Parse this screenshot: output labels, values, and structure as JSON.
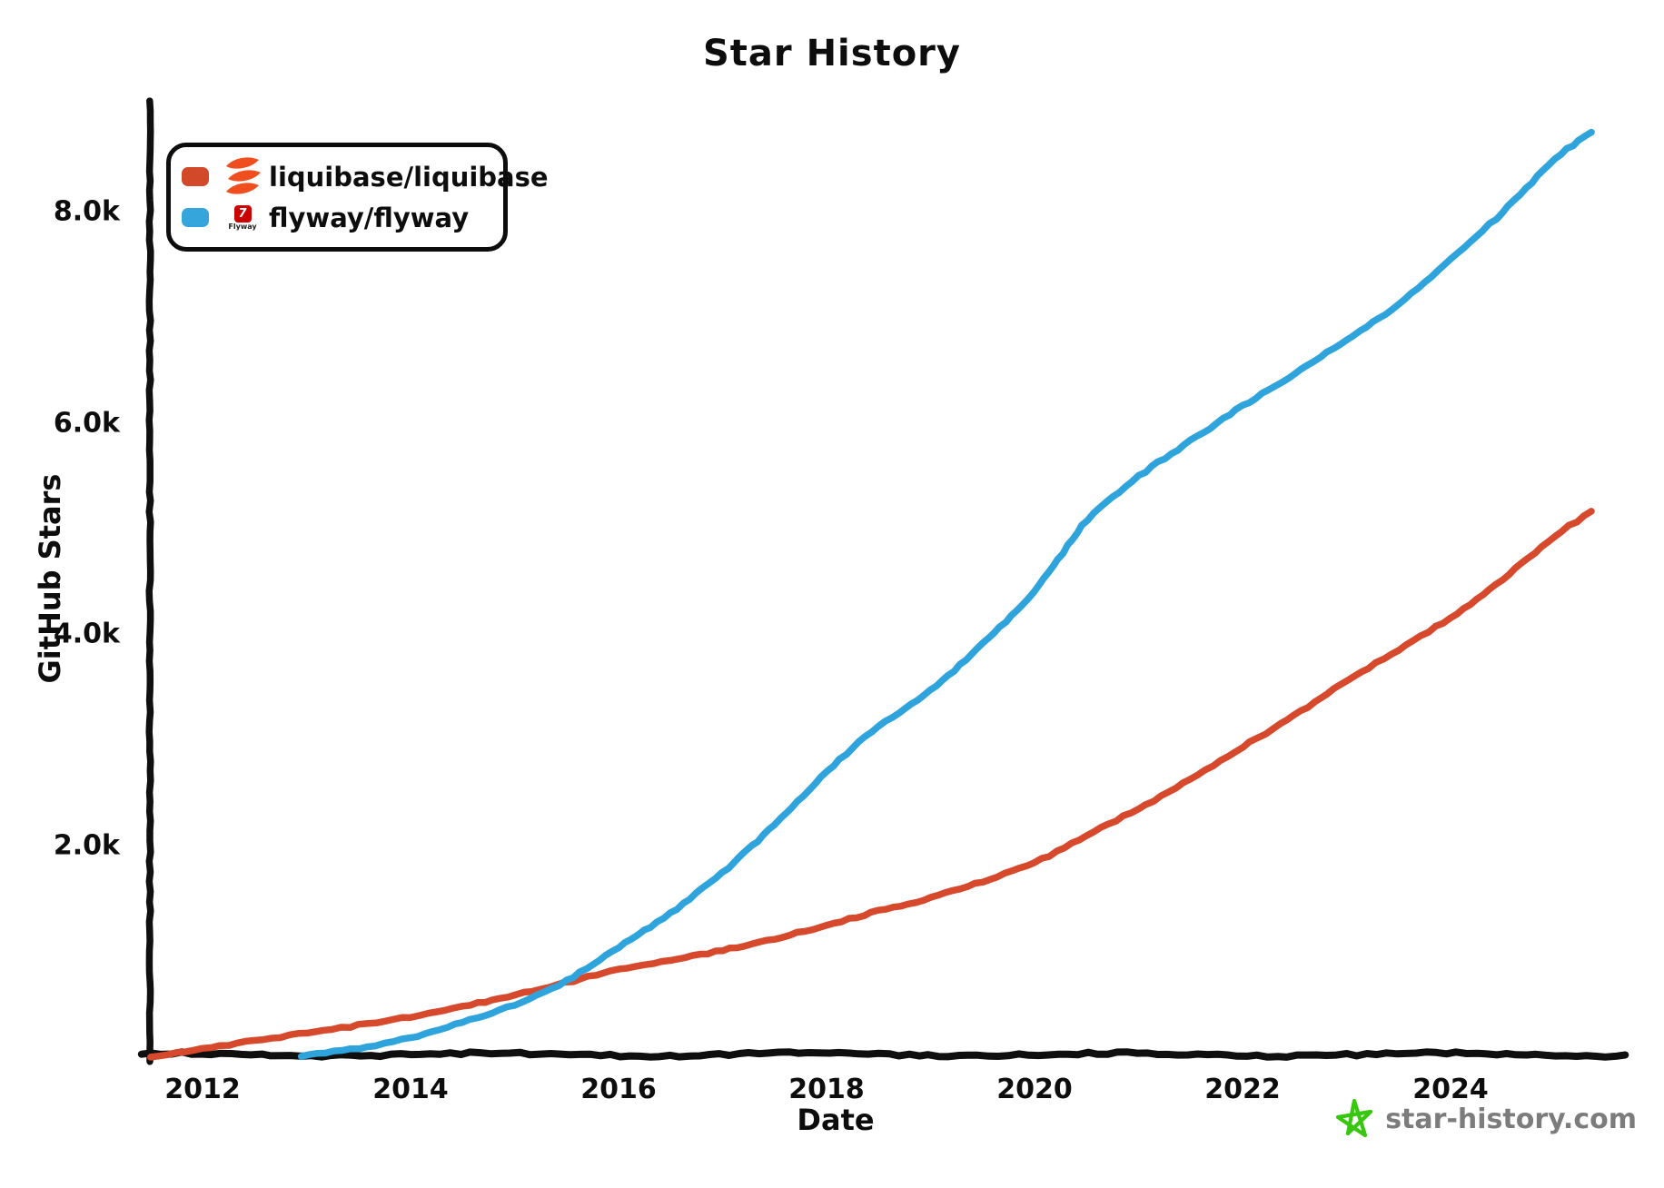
{
  "title": "Star History",
  "legend": {
    "items": [
      {
        "label": "liquibase/liquibase",
        "color": "#d2492a",
        "logo": "liquibase-logo",
        "logo_color": "#f04e1f"
      },
      {
        "label": "flyway/flyway",
        "color": "#35a5dc",
        "logo": "flyway-logo",
        "logo_color": "#cc0201",
        "logo_word": "Flyway"
      }
    ]
  },
  "watermark": {
    "text": "star-history.com",
    "star_color": "#36c70e",
    "text_color": "#7c7c7c"
  },
  "axis_color": "#0f0f0f",
  "chart_data": {
    "type": "line",
    "title": "Star History",
    "xlabel": "Date",
    "ylabel": "GitHub Stars",
    "x_ticks": [
      2012,
      2014,
      2016,
      2018,
      2020,
      2022,
      2024
    ],
    "y_ticks": [
      {
        "value": 2000,
        "label": "2.0k"
      },
      {
        "value": 4000,
        "label": "4.0k"
      },
      {
        "value": 6000,
        "label": "6.0k"
      },
      {
        "value": 8000,
        "label": "8.0k"
      }
    ],
    "xlim": [
      2011.45,
      2025.7
    ],
    "ylim": [
      0,
      9000
    ],
    "grid": false,
    "legend_position": "top-left",
    "series": [
      {
        "name": "liquibase/liquibase",
        "color": "#d6492c",
        "x": [
          2011.5,
          2012,
          2012.5,
          2013,
          2013.5,
          2014,
          2014.5,
          2015,
          2015.5,
          2016,
          2016.5,
          2017,
          2017.5,
          2018,
          2018.5,
          2019,
          2019.5,
          2020,
          2020.5,
          2021,
          2021.5,
          2022,
          2022.5,
          2023,
          2023.5,
          2024,
          2024.5,
          2025,
          2025.35
        ],
        "y": [
          0,
          80,
          140,
          210,
          290,
          380,
          480,
          590,
          690,
          810,
          900,
          1010,
          1120,
          1250,
          1370,
          1490,
          1650,
          1830,
          2100,
          2350,
          2620,
          2920,
          3220,
          3560,
          3860,
          4160,
          4510,
          4920,
          5150
        ]
      },
      {
        "name": "flyway/flyway",
        "color": "#2fa4dc",
        "x": [
          2012.95,
          2013.5,
          2014,
          2014.5,
          2015,
          2015.5,
          2016,
          2016.5,
          2017,
          2017.5,
          2018,
          2018.5,
          2019,
          2019.5,
          2020,
          2020.5,
          2021,
          2021.5,
          2022,
          2022.5,
          2023,
          2023.5,
          2024,
          2024.5,
          2025,
          2025.35
        ],
        "y": [
          0,
          80,
          180,
          330,
          480,
          700,
          1020,
          1350,
          1750,
          2200,
          2700,
          3120,
          3450,
          3900,
          4400,
          5100,
          5500,
          5820,
          6150,
          6460,
          6800,
          7120,
          7550,
          7980,
          8500,
          8750
        ]
      }
    ]
  }
}
